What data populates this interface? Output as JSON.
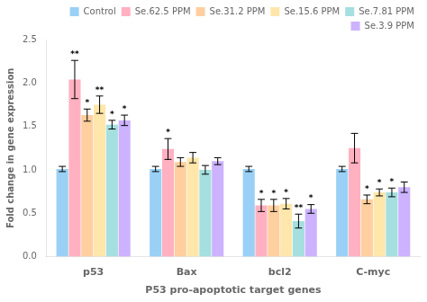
{
  "chart_data": {
    "type": "bar",
    "categories": [
      "p53",
      "Bax",
      "bcl2",
      "C-myc"
    ],
    "series": [
      {
        "name": "Control",
        "values": [
          1.01,
          1.01,
          1.01,
          1.01
        ],
        "errors": [
          0.03,
          0.03,
          0.03,
          0.03
        ],
        "significance": [
          "",
          "",
          "",
          ""
        ]
      },
      {
        "name": "Se.62.5 PPM",
        "values": [
          2.04,
          1.24,
          0.59,
          1.25
        ],
        "errors": [
          0.22,
          0.12,
          0.07,
          0.17
        ],
        "significance": [
          "**",
          "*",
          "*",
          ""
        ]
      },
      {
        "name": "Se.31.2 PPM",
        "values": [
          1.63,
          1.09,
          0.59,
          0.66
        ],
        "errors": [
          0.07,
          0.05,
          0.07,
          0.05
        ],
        "significance": [
          "*",
          "",
          "*",
          "*"
        ]
      },
      {
        "name": "Se.15.6 PPM",
        "values": [
          1.75,
          1.14,
          0.61,
          0.74
        ],
        "errors": [
          0.1,
          0.06,
          0.06,
          0.04
        ],
        "significance": [
          "**",
          "",
          "*",
          "*"
        ]
      },
      {
        "name": "Se.7.81 PPM",
        "values": [
          1.52,
          1.0,
          0.41,
          0.74
        ],
        "errors": [
          0.05,
          0.05,
          0.08,
          0.05
        ],
        "significance": [
          "*",
          "",
          "**",
          "*"
        ]
      },
      {
        "name": "Se.3.9 PPM",
        "values": [
          1.57,
          1.1,
          0.55,
          0.8
        ],
        "errors": [
          0.06,
          0.04,
          0.05,
          0.06
        ],
        "significance": [
          "*",
          "",
          "*",
          ""
        ]
      }
    ],
    "xlabel": "P53 pro-apoptotic target genes",
    "ylabel": "Fold change in gene expression",
    "ylim": [
      0.0,
      2.5
    ],
    "yticks": [
      {
        "value": 0.0,
        "label": "0.0"
      },
      0.5,
      {
        "value": 1.0,
        "label": "1.0"
      },
      1.5,
      {
        "value": 2.0,
        "label": "2.0"
      },
      2.5
    ],
    "legend": "upper right",
    "grid": false
  }
}
